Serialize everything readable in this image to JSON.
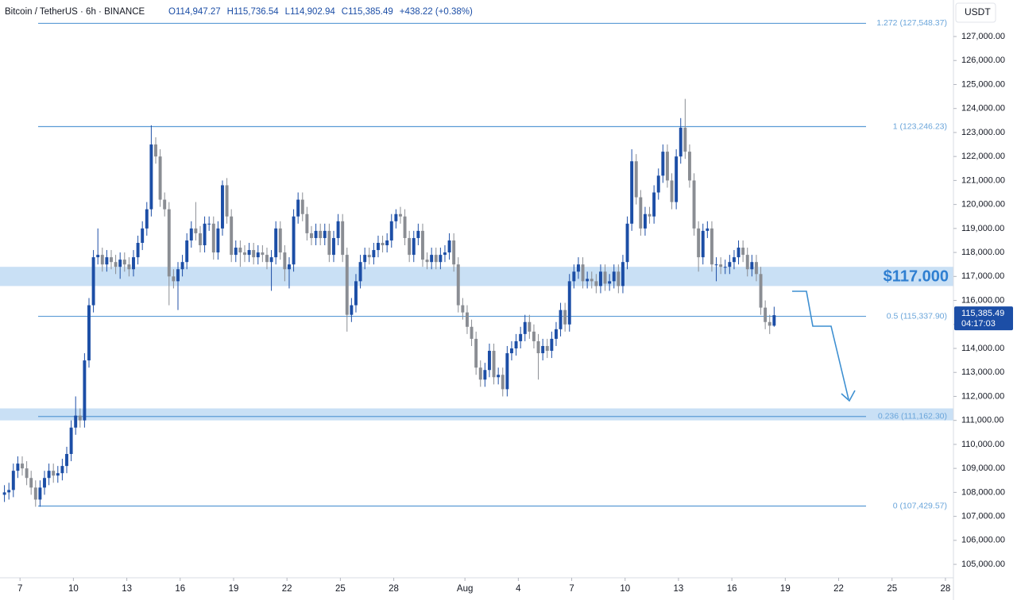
{
  "chart_data": {
    "type": "candlestick",
    "title": "Bitcoin / TetherUS · 6h · BINANCE",
    "ohlc_labels": [
      "O114,947.27",
      "H115,736.54",
      "L114,902.94",
      "C115,385.49",
      "+438.22 (+0.38%)"
    ],
    "currency": "USDT",
    "last_price_label": "115,385.49",
    "countdown": "04:17:03",
    "up_color": "#1c4ea6",
    "down_color": "#8a8d93",
    "xlim": [
      -0.5,
      213.8
    ],
    "ylim": [
      104440,
      128522
    ],
    "xticks": [
      {
        "value": 4,
        "label": "7"
      },
      {
        "value": 16,
        "label": "10"
      },
      {
        "value": 28,
        "label": "13"
      },
      {
        "value": 40,
        "label": "16"
      },
      {
        "value": 52,
        "label": "19"
      },
      {
        "value": 64,
        "label": "22"
      },
      {
        "value": 76,
        "label": "25"
      },
      {
        "value": 88,
        "label": "28"
      },
      {
        "value": 104,
        "label": "Aug"
      },
      {
        "value": 116,
        "label": "4"
      },
      {
        "value": 128,
        "label": "7"
      },
      {
        "value": 140,
        "label": "10"
      },
      {
        "value": 152,
        "label": "13"
      },
      {
        "value": 164,
        "label": "16"
      },
      {
        "value": 176,
        "label": "19"
      },
      {
        "value": 188,
        "label": "22"
      },
      {
        "value": 200,
        "label": "25"
      },
      {
        "value": 212,
        "label": "28"
      }
    ],
    "yticks": [
      {
        "value": 105000,
        "label": "105,000.00"
      },
      {
        "value": 106000,
        "label": "106,000.00"
      },
      {
        "value": 107000,
        "label": "107,000.00"
      },
      {
        "value": 108000,
        "label": "108,000.00"
      },
      {
        "value": 109000,
        "label": "109,000.00"
      },
      {
        "value": 110000,
        "label": "110,000.00"
      },
      {
        "value": 111000,
        "label": "111,000.00"
      },
      {
        "value": 112000,
        "label": "112,000.00"
      },
      {
        "value": 113000,
        "label": "113,000.00"
      },
      {
        "value": 114000,
        "label": "114,000.00"
      },
      {
        "value": 115000,
        "label": "115,000.00"
      },
      {
        "value": 116000,
        "label": "116,000.00"
      },
      {
        "value": 117000,
        "label": "117,000.00"
      },
      {
        "value": 118000,
        "label": "118,000.00"
      },
      {
        "value": 119000,
        "label": "119,000.00"
      },
      {
        "value": 120000,
        "label": "120,000.00"
      },
      {
        "value": 121000,
        "label": "121,000.00"
      },
      {
        "value": 122000,
        "label": "122,000.00"
      },
      {
        "value": 123000,
        "label": "123,000.00"
      },
      {
        "value": 124000,
        "label": "124,000.00"
      },
      {
        "value": 125000,
        "label": "125,000.00"
      },
      {
        "value": 126000,
        "label": "126,000.00"
      },
      {
        "value": 127000,
        "label": "127,000.00"
      }
    ],
    "levels": [
      {
        "value": 127548.37,
        "label": "1.272 (127,548.37)"
      },
      {
        "value": 123246.23,
        "label": "1 (123,246.23)"
      },
      {
        "value": 115337.9,
        "label": "0.5 (115,337.90)"
      },
      {
        "value": 111162.3,
        "label": "0.236 (111,162.30)"
      },
      {
        "value": 107429.57,
        "label": "0 (107,429.57)"
      }
    ],
    "zones": [
      {
        "range": [
          116600,
          117400
        ],
        "label": "$117.000"
      },
      {
        "range": [
          111000,
          111500
        ]
      }
    ],
    "open": [
      107900,
      108000,
      108100,
      108900,
      109200,
      109000,
      108600,
      108200,
      107700,
      108200,
      108600,
      108900,
      108700,
      108800,
      109100,
      109600,
      110700,
      111200,
      111000,
      113500,
      115800,
      117800,
      117900,
      117500,
      117800,
      117600,
      117400,
      117700,
      117500,
      117300,
      117800,
      118400,
      119000,
      119800,
      122500,
      122000,
      120200,
      119800,
      117000,
      116800,
      117300,
      117600,
      118500,
      119000,
      118800,
      118300,
      119200,
      119200,
      118000,
      119000,
      120800,
      119500,
      117900,
      118200,
      118000,
      117900,
      118100,
      117800,
      118000,
      117900,
      117600,
      117800,
      119000,
      118000,
      117300,
      117500,
      119500,
      120200,
      119600,
      118800,
      118600,
      118900,
      118600,
      118900,
      117900,
      118600,
      119300,
      117900,
      115400,
      115800,
      116800,
      117600,
      117900,
      117800,
      118100,
      118400,
      118300,
      118500,
      119300,
      119600,
      119500,
      118600,
      117900,
      118600,
      118900,
      117700,
      117600,
      117900,
      117600,
      117900,
      118000,
      118500,
      117500,
      115800,
      115500,
      114900,
      114400,
      113200,
      112700,
      113100,
      113900,
      112800,
      112900,
      112300,
      113800,
      114000,
      114300,
      114600,
      115100,
      114700,
      114300,
      113800,
      114100,
      113900,
      114400,
      114800,
      115600,
      115000,
      116800,
      117200,
      117500,
      116800,
      116900,
      116800,
      116600,
      117200,
      116700,
      116800,
      117200,
      116600,
      117600,
      119200,
      121800,
      120300,
      119000,
      119600,
      119500,
      120500,
      121200,
      122200,
      121000,
      120100,
      122000,
      123200,
      122200,
      121000,
      119000,
      117800,
      118900,
      119000,
      117500,
      117500,
      117400,
      117400,
      117600,
      117800,
      118200,
      117900,
      117300,
      117600,
      117100,
      115700,
      115100,
      114947.27
    ],
    "high": [
      108300,
      108400,
      109200,
      109500,
      109500,
      109300,
      108900,
      108500,
      108500,
      108900,
      109200,
      109200,
      109100,
      109400,
      109900,
      111000,
      112000,
      111500,
      113800,
      116100,
      118100,
      119000,
      118200,
      118100,
      118100,
      117900,
      118000,
      118000,
      117800,
      118100,
      118700,
      119300,
      120100,
      123300,
      122800,
      122300,
      120500,
      120100,
      117300,
      117600,
      117900,
      118800,
      119300,
      120100,
      119100,
      119500,
      119500,
      119500,
      119300,
      121000,
      121100,
      119800,
      118500,
      118500,
      118300,
      118400,
      118400,
      118300,
      118300,
      118200,
      118100,
      119300,
      119300,
      118300,
      117800,
      119800,
      120500,
      120500,
      119900,
      119100,
      119200,
      119200,
      119200,
      119200,
      118900,
      119600,
      119600,
      118200,
      116100,
      117100,
      117900,
      118200,
      118200,
      118400,
      118700,
      118700,
      118800,
      119600,
      119800,
      119900,
      119800,
      118900,
      118900,
      119200,
      119200,
      118000,
      118200,
      118200,
      118200,
      118300,
      118800,
      118800,
      117800,
      116100,
      115800,
      115200,
      114700,
      113500,
      113400,
      114200,
      114200,
      113200,
      113200,
      114100,
      114300,
      114600,
      114900,
      115400,
      115400,
      115000,
      114600,
      114400,
      114400,
      114700,
      115100,
      115900,
      115900,
      117100,
      117500,
      117800,
      117800,
      117200,
      117200,
      117100,
      117500,
      117500,
      117100,
      117500,
      117500,
      117900,
      119500,
      122300,
      122100,
      120600,
      119900,
      119900,
      120800,
      121500,
      122500,
      122500,
      121300,
      122300,
      123600,
      124400,
      122500,
      121300,
      119300,
      119200,
      119300,
      119300,
      117800,
      117800,
      117700,
      117900,
      118100,
      118500,
      118500,
      118200,
      117900,
      117900,
      117400,
      116000,
      115400,
      115736.54
    ],
    "low": [
      107600,
      107700,
      107800,
      108600,
      108700,
      108300,
      107900,
      107400,
      107400,
      107900,
      108300,
      108400,
      108400,
      108500,
      108800,
      109300,
      110400,
      110700,
      110700,
      113200,
      115500,
      117500,
      117200,
      117200,
      117300,
      117100,
      116900,
      117200,
      117000,
      117000,
      117500,
      118100,
      118700,
      119500,
      121700,
      119900,
      119500,
      115800,
      116500,
      115600,
      117000,
      117300,
      118200,
      118500,
      118000,
      118000,
      118900,
      117700,
      117700,
      118700,
      119200,
      117600,
      117600,
      117400,
      117600,
      117600,
      117500,
      117500,
      117600,
      117300,
      116400,
      117500,
      117700,
      116800,
      116500,
      117200,
      119200,
      119300,
      118500,
      118300,
      118300,
      118300,
      118300,
      117600,
      117600,
      118300,
      117600,
      114700,
      115100,
      115500,
      116500,
      117300,
      117500,
      117500,
      117800,
      118000,
      118000,
      118200,
      119000,
      119200,
      118300,
      117600,
      117600,
      118300,
      117400,
      117300,
      117300,
      117300,
      117300,
      117600,
      117700,
      117200,
      115500,
      115200,
      114600,
      114100,
      112900,
      112400,
      112400,
      112800,
      112500,
      112500,
      112000,
      112000,
      113500,
      113700,
      114000,
      114300,
      114400,
      114000,
      112700,
      113500,
      113600,
      113600,
      114100,
      114500,
      114700,
      114700,
      116500,
      116900,
      116500,
      116500,
      116500,
      116300,
      116300,
      116400,
      116400,
      116500,
      116300,
      116300,
      117300,
      118900,
      120000,
      118700,
      118700,
      119200,
      119200,
      120200,
      120900,
      120700,
      119800,
      119800,
      121700,
      121900,
      120700,
      118700,
      117200,
      117500,
      118600,
      117200,
      116800,
      117100,
      117100,
      117100,
      117300,
      117500,
      117600,
      117000,
      117000,
      116800,
      115400,
      114800,
      114600,
      114902.94
    ],
    "close": [
      108000,
      108100,
      108900,
      109200,
      109000,
      108600,
      108200,
      107700,
      108200,
      108600,
      108900,
      108700,
      108800,
      109100,
      109600,
      110700,
      111200,
      111000,
      113500,
      115800,
      117800,
      117900,
      117500,
      117800,
      117600,
      117400,
      117700,
      117500,
      117300,
      117800,
      118400,
      119000,
      119800,
      122500,
      122000,
      120200,
      119800,
      117000,
      116800,
      117300,
      117600,
      118500,
      119000,
      118800,
      118300,
      119200,
      119200,
      118000,
      119000,
      120800,
      119500,
      117900,
      118200,
      118000,
      117900,
      118100,
      117800,
      118000,
      117900,
      117600,
      117800,
      119000,
      118000,
      117300,
      117500,
      119500,
      120200,
      119600,
      118800,
      118600,
      118900,
      118600,
      118900,
      117900,
      118600,
      119300,
      117900,
      115400,
      115800,
      116800,
      117600,
      117900,
      117800,
      118100,
      118400,
      118300,
      118500,
      119300,
      119600,
      119500,
      118600,
      117900,
      118600,
      118900,
      117700,
      117600,
      117900,
      117600,
      117900,
      118000,
      118500,
      117500,
      115800,
      115500,
      114900,
      114400,
      113200,
      112700,
      113100,
      113900,
      112800,
      112900,
      112300,
      113800,
      114000,
      114300,
      114600,
      115100,
      114700,
      114300,
      113800,
      114100,
      113900,
      114400,
      114800,
      115600,
      115000,
      116800,
      117200,
      117500,
      116800,
      116900,
      116800,
      116600,
      117200,
      116700,
      116800,
      117200,
      116600,
      117600,
      119200,
      121800,
      120300,
      119000,
      119600,
      119500,
      120500,
      121200,
      122200,
      121000,
      120100,
      122000,
      123200,
      122200,
      121000,
      119000,
      117800,
      118900,
      119000,
      117500,
      117500,
      117400,
      117400,
      117600,
      117800,
      118200,
      117900,
      117300,
      117600,
      117100,
      115700,
      115100,
      114947.27,
      115385.49
    ]
  }
}
